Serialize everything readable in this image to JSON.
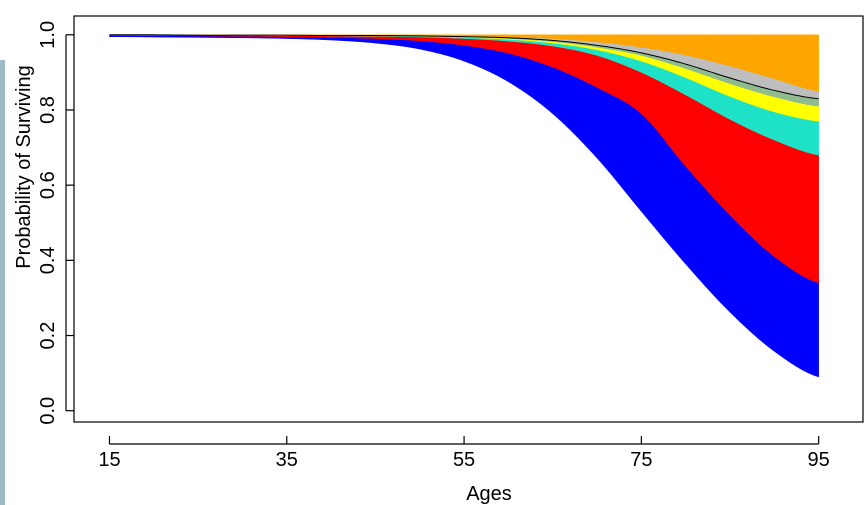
{
  "chart_data": {
    "type": "area",
    "xlabel": "Ages",
    "ylabel": "Probability of Surviving",
    "xlim": [
      11,
      100
    ],
    "ylim": [
      -0.03,
      1.05
    ],
    "x_ticks": [
      15,
      35,
      55,
      75,
      95
    ],
    "y_ticks": [
      0.0,
      0.2,
      0.4,
      0.6,
      0.8,
      1.0
    ],
    "y_tick_labels": [
      "0.0",
      "0.2",
      "0.4",
      "0.6",
      "0.8",
      "1.0"
    ],
    "grid": false,
    "legend": "none",
    "x": [
      15,
      20,
      25,
      30,
      35,
      40,
      45,
      50,
      55,
      60,
      65,
      70,
      75,
      80,
      85,
      90,
      95
    ],
    "boundaries": [
      [
        0.995,
        0.994,
        0.993,
        0.992,
        0.99,
        0.986,
        0.978,
        0.962,
        0.93,
        0.875,
        0.79,
        0.672,
        0.53,
        0.39,
        0.262,
        0.158,
        0.09
      ],
      [
        1.0,
        0.998,
        0.997,
        0.996,
        0.995,
        0.993,
        0.99,
        0.984,
        0.972,
        0.951,
        0.914,
        0.86,
        0.79,
        0.65,
        0.52,
        0.41,
        0.34
      ],
      [
        1.0,
        0.999,
        0.999,
        0.998,
        0.998,
        0.997,
        0.996,
        0.994,
        0.99,
        0.983,
        0.97,
        0.945,
        0.9,
        0.84,
        0.775,
        0.72,
        0.68
      ],
      [
        1.0,
        0.999,
        0.999,
        0.999,
        0.998,
        0.998,
        0.997,
        0.996,
        0.993,
        0.988,
        0.978,
        0.96,
        0.93,
        0.886,
        0.836,
        0.795,
        0.77
      ],
      [
        1.0,
        0.999,
        0.999,
        0.999,
        0.998,
        0.998,
        0.997,
        0.996,
        0.994,
        0.99,
        0.982,
        0.967,
        0.945,
        0.91,
        0.87,
        0.835,
        0.81
      ],
      [
        1.0,
        1.0,
        0.999,
        0.999,
        0.999,
        0.998,
        0.998,
        0.997,
        0.995,
        0.992,
        0.985,
        0.972,
        0.952,
        0.922,
        0.885,
        0.852,
        0.83
      ],
      [
        1.0,
        1.0,
        0.999,
        0.999,
        0.999,
        0.999,
        0.998,
        0.998,
        0.996,
        0.994,
        0.99,
        0.981,
        0.967,
        0.946,
        0.917,
        0.883,
        0.85
      ]
    ],
    "band_colors": [
      "#0000ff",
      "#ff0000",
      "#1de2c8",
      "#ffff00",
      "#8fbc8f",
      "#bebebe",
      "#ffa500"
    ],
    "line_color": "#000000",
    "accent_side_strip": "#9fb9c6"
  }
}
